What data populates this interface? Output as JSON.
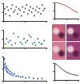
{
  "chart_data": [
    {
      "type": "scatter",
      "xlim": [
        0,
        100
      ],
      "ylim": [
        0,
        10
      ],
      "xticks": [
        0,
        50,
        100
      ],
      "yticks": [
        0,
        5,
        10
      ],
      "grid": false,
      "tick_labels": false,
      "marker": "circle",
      "series": [
        {
          "color": "#555555",
          "x": [
            3,
            6,
            9,
            12,
            15,
            18,
            21,
            24,
            27,
            30,
            33,
            36,
            39,
            42,
            45,
            48,
            51,
            54,
            57,
            60,
            63,
            66,
            69,
            72,
            75,
            78,
            81,
            84,
            87,
            90,
            93,
            96
          ],
          "values": [
            7,
            4,
            8,
            6,
            3,
            7,
            9,
            5,
            6,
            8,
            4,
            7,
            6,
            3,
            8,
            5,
            7,
            9,
            4,
            6,
            8,
            5,
            7,
            3,
            6,
            8,
            5,
            7,
            4,
            9,
            6,
            7
          ]
        }
      ]
    },
    {
      "type": "line",
      "xlim": [
        0,
        10
      ],
      "ylim": [
        0,
        1
      ],
      "xticks": [
        0,
        5,
        10
      ],
      "yticks": [
        0,
        0.5,
        1
      ],
      "grid": false,
      "tick_labels": false,
      "line_style": "solid",
      "series": [
        {
          "color": "#d9534f",
          "x": [
            0,
            1,
            2,
            3,
            4,
            5,
            6,
            7,
            8,
            9,
            10
          ],
          "values": [
            1,
            0.98,
            0.95,
            0.9,
            0.85,
            0.78,
            0.7,
            0.6,
            0.5,
            0.42,
            0.35
          ]
        }
      ]
    },
    {
      "type": "scatter",
      "xlim": [
        0,
        100
      ],
      "ylim": [
        0,
        10
      ],
      "xticks": [
        0,
        50,
        100
      ],
      "yticks": [
        0,
        5,
        10
      ],
      "grid": false,
      "tick_labels": false,
      "marker": "circle",
      "series": [
        {
          "color": "#3a9a3a",
          "x": [
            5,
            12,
            20,
            28,
            35,
            44,
            52,
            60,
            68,
            75,
            83,
            90
          ],
          "values": [
            2,
            3,
            1.5,
            2.5,
            6,
            2,
            3,
            7,
            2,
            1.5,
            3,
            2
          ]
        },
        {
          "color": "#3a5fc8",
          "x": [
            8,
            16,
            24,
            40,
            48,
            56,
            64,
            72,
            80,
            88,
            95
          ],
          "values": [
            5,
            4,
            8,
            3,
            5,
            4,
            6,
            3,
            5,
            2,
            4
          ]
        }
      ]
    },
    {
      "type": "scatter",
      "xlim": [
        0,
        100
      ],
      "ylim": [
        0,
        100
      ],
      "xticks": [
        0,
        50,
        100
      ],
      "yticks": [
        0,
        50,
        100
      ],
      "grid": false,
      "tick_labels": false,
      "marker": "circle",
      "series": [
        {
          "color": "#2b55c0",
          "x": [
            1,
            2,
            3,
            4,
            5,
            6,
            7,
            8,
            9,
            10,
            12,
            14,
            16,
            18,
            20,
            23,
            26,
            30,
            35,
            40,
            45,
            52,
            60,
            70,
            80,
            90
          ],
          "values": [
            80,
            65,
            90,
            55,
            70,
            48,
            60,
            40,
            52,
            35,
            45,
            30,
            38,
            25,
            32,
            22,
            28,
            18,
            20,
            15,
            17,
            12,
            14,
            10,
            8,
            9
          ]
        }
      ]
    },
    {
      "type": "line",
      "xlim": [
        0,
        10
      ],
      "ylim": [
        0,
        1
      ],
      "xticks": [
        0,
        5,
        10
      ],
      "yticks": [
        0,
        0.5,
        1
      ],
      "grid": false,
      "tick_labels": false,
      "line_style": "solid",
      "series": [
        {
          "color": "#555555",
          "x": [
            0,
            1,
            2,
            3,
            4,
            5,
            6,
            7,
            8,
            9,
            10
          ],
          "values": [
            1,
            0.9,
            0.78,
            0.65,
            0.55,
            0.46,
            0.4,
            0.35,
            0.31,
            0.28,
            0.26
          ]
        }
      ]
    }
  ]
}
